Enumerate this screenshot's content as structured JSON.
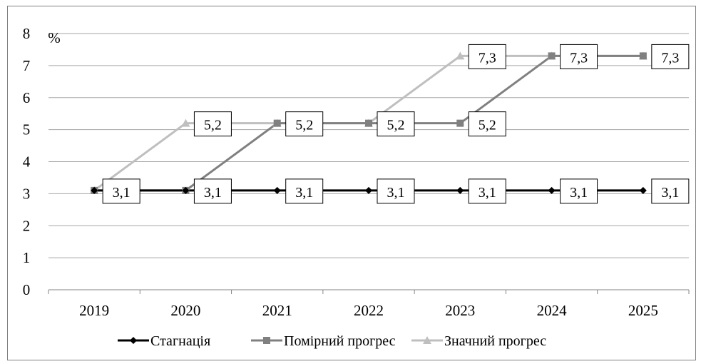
{
  "chart_data": {
    "type": "line",
    "title": "",
    "xlabel": "",
    "ylabel": "%",
    "ylim": [
      0,
      8
    ],
    "yticks": [
      "0",
      "1",
      "2",
      "3",
      "4",
      "5",
      "6",
      "7",
      "8"
    ],
    "categories": [
      "2019",
      "2020",
      "2021",
      "2022",
      "2023",
      "2024",
      "2025"
    ],
    "grid": true,
    "legend_position": "bottom",
    "series": [
      {
        "name": "Стагнація",
        "color": "#000000",
        "marker": "diamond",
        "values": [
          3.1,
          3.1,
          3.1,
          3.1,
          3.1,
          3.1,
          3.1
        ],
        "labels": [
          "3,1",
          "3,1",
          "3,1",
          "3,1",
          "3,1",
          "3,1",
          "3,1"
        ]
      },
      {
        "name": "Помірний прогрес",
        "color": "#808080",
        "marker": "square",
        "values": [
          3.1,
          3.1,
          5.2,
          5.2,
          5.2,
          7.3,
          7.3
        ],
        "labels": [
          "3,1",
          "3,1",
          "5,2",
          "5,2",
          "5,2",
          "7,3",
          "7,3"
        ]
      },
      {
        "name": "Значний прогрес",
        "color": "#bfbfbf",
        "marker": "triangle",
        "values": [
          3.1,
          5.2,
          5.2,
          5.2,
          7.3,
          7.3,
          7.3
        ],
        "labels": [
          "3,1",
          "5,2",
          "5,2",
          "5,2",
          "7,3",
          "7,3",
          "7,3"
        ]
      }
    ]
  }
}
